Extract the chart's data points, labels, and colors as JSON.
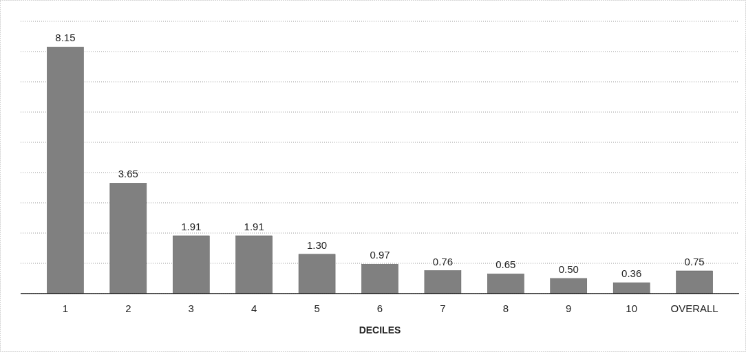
{
  "chart_data": {
    "type": "bar",
    "xlabel": "DECILES",
    "categories": [
      "1",
      "2",
      "3",
      "4",
      "5",
      "6",
      "7",
      "8",
      "9",
      "10",
      "OVERALL"
    ],
    "values": [
      8.15,
      3.65,
      1.91,
      1.91,
      1.3,
      0.97,
      0.76,
      0.65,
      0.5,
      0.36,
      0.75
    ],
    "value_labels": [
      "8.15",
      "3.65",
      "1.91",
      "1.91",
      "1.30",
      "0.97",
      "0.76",
      "0.65",
      "0.50",
      "0.36",
      "0.75"
    ],
    "color": "#808080",
    "ylim": [
      0,
      9
    ],
    "yticks": [
      {
        "value": 0,
        "label": null
      },
      {
        "value": 1,
        "label": null
      },
      {
        "value": 2,
        "label": null
      },
      {
        "value": 3,
        "label": null
      },
      {
        "value": 4,
        "label": null
      },
      {
        "value": 5,
        "label": null
      },
      {
        "value": 6,
        "label": null
      },
      {
        "value": 7,
        "label": null
      },
      {
        "value": 8,
        "label": null
      },
      {
        "value": 9,
        "label": null
      }
    ],
    "grid": "y",
    "tick_labels": "x"
  }
}
